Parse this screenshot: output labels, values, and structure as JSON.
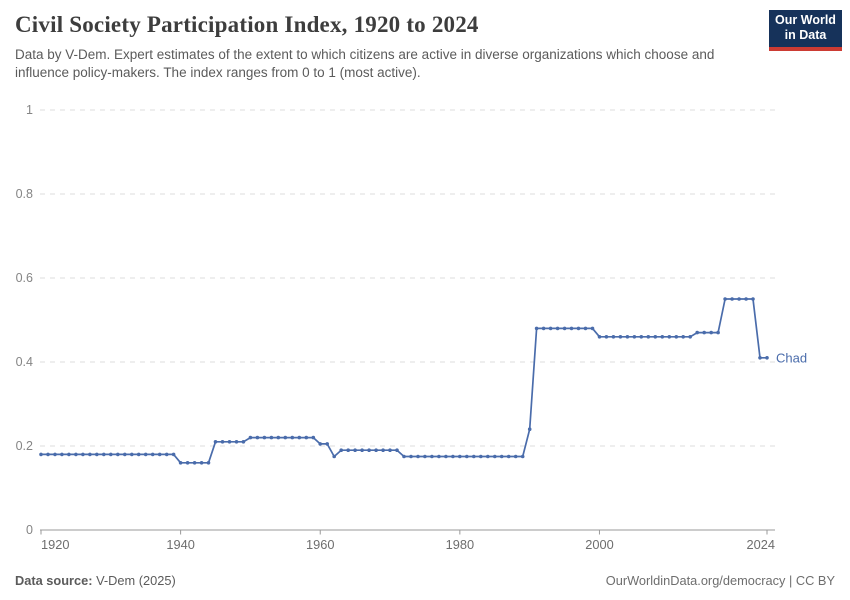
{
  "header": {
    "title": "Civil Society Participation Index, 1920 to 2024",
    "subtitle": "Data by V-Dem. Expert estimates of the extent to which citizens are active in diverse organizations which choose and influence policy-makers. The index ranges from 0 to 1 (most active)."
  },
  "logo": {
    "line1": "Our World",
    "line2": "in Data",
    "bg_color": "#16325a",
    "stripe_color": "#cc3b33"
  },
  "footer": {
    "source_label": "Data source:",
    "source_value": " V-Dem (2025)",
    "right_text": "OurWorldinData.org/democracy | CC BY"
  },
  "chart_data": {
    "type": "line",
    "title": "Civil Society Participation Index, 1920 to 2024",
    "xlabel": "",
    "ylabel": "",
    "xlim": [
      1920,
      2024
    ],
    "ylim": [
      0,
      1
    ],
    "x_ticks": [
      1920,
      1940,
      1960,
      1980,
      2000,
      2024
    ],
    "y_ticks": [
      0,
      0.2,
      0.4,
      0.6,
      0.8,
      1
    ],
    "y_tick_labels": [
      "0",
      "0.2",
      "0.4",
      "0.6",
      "0.8",
      "1"
    ],
    "grid": "dashed-horizontal",
    "legend_position": "end-of-line-label",
    "gridline_color": "#dcdcdc",
    "axis_color": "#999999",
    "tick_label_color": "#858585",
    "series": [
      {
        "name": "Chad",
        "color": "#4a6cab",
        "year_start": 1920,
        "values": [
          0.18,
          0.18,
          0.18,
          0.18,
          0.18,
          0.18,
          0.18,
          0.18,
          0.18,
          0.18,
          0.18,
          0.18,
          0.18,
          0.18,
          0.18,
          0.18,
          0.18,
          0.18,
          0.18,
          0.18,
          0.16,
          0.16,
          0.16,
          0.16,
          0.16,
          0.21,
          0.21,
          0.21,
          0.21,
          0.21,
          0.22,
          0.22,
          0.22,
          0.22,
          0.22,
          0.22,
          0.22,
          0.22,
          0.22,
          0.22,
          0.205,
          0.205,
          0.175,
          0.19,
          0.19,
          0.19,
          0.19,
          0.19,
          0.19,
          0.19,
          0.19,
          0.19,
          0.175,
          0.175,
          0.175,
          0.175,
          0.175,
          0.175,
          0.175,
          0.175,
          0.175,
          0.175,
          0.175,
          0.175,
          0.175,
          0.175,
          0.175,
          0.175,
          0.175,
          0.175,
          0.24,
          0.48,
          0.48,
          0.48,
          0.48,
          0.48,
          0.48,
          0.48,
          0.48,
          0.48,
          0.46,
          0.46,
          0.46,
          0.46,
          0.46,
          0.46,
          0.46,
          0.46,
          0.46,
          0.46,
          0.46,
          0.46,
          0.46,
          0.46,
          0.47,
          0.47,
          0.47,
          0.47,
          0.55,
          0.55,
          0.55,
          0.55,
          0.55,
          0.41,
          0.41
        ]
      }
    ]
  }
}
